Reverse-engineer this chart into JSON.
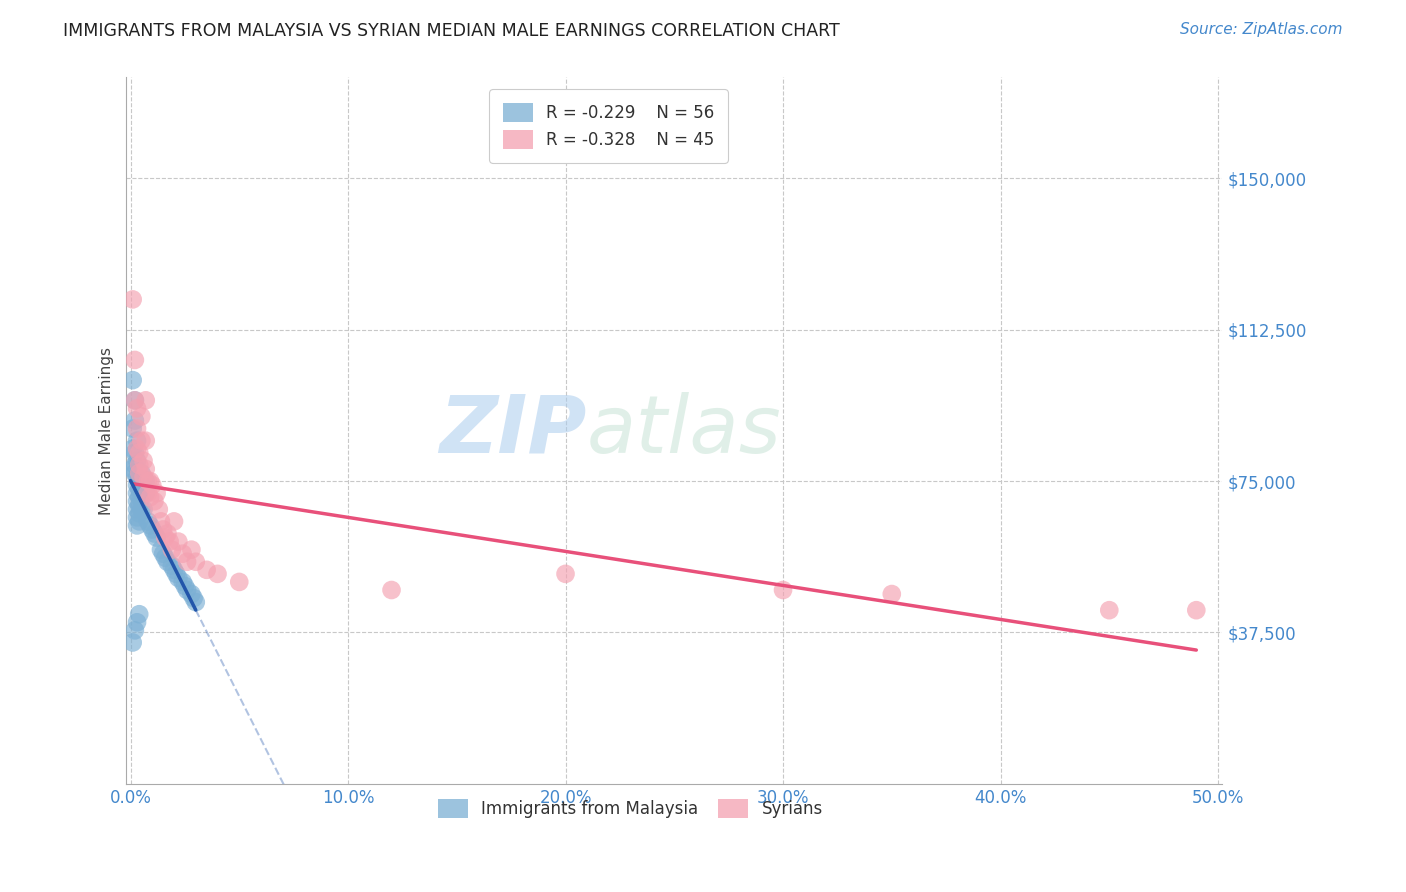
{
  "title": "IMMIGRANTS FROM MALAYSIA VS SYRIAN MEDIAN MALE EARNINGS CORRELATION CHART",
  "source": "Source: ZipAtlas.com",
  "ylabel": "Median Male Earnings",
  "xlim": [
    -0.002,
    0.502
  ],
  "ylim": [
    0,
    175000
  ],
  "yticks": [
    0,
    37500,
    75000,
    112500,
    150000
  ],
  "ytick_labels": [
    "",
    "$37,500",
    "$75,000",
    "$112,500",
    "$150,000"
  ],
  "xticks": [
    0.0,
    0.1,
    0.2,
    0.3,
    0.4,
    0.5
  ],
  "xtick_labels": [
    "0.0%",
    "10.0%",
    "20.0%",
    "30.0%",
    "40.0%",
    "50.0%"
  ],
  "grid_color": "#c8c8c8",
  "background_color": "#ffffff",
  "malaysia_color": "#7bafd4",
  "syrian_color": "#f4a0b0",
  "malaysia_line_color": "#2255aa",
  "syrian_line_color": "#e8507a",
  "malaysia_label": "Immigrants from Malaysia",
  "syrian_label": "Syrians",
  "R_malaysia": -0.229,
  "N_malaysia": 56,
  "R_syrian": -0.328,
  "N_syrian": 45,
  "watermark_zip": "ZIP",
  "watermark_atlas": "atlas",
  "malaysia_x": [
    0.001,
    0.001,
    0.001,
    0.001,
    0.002,
    0.002,
    0.002,
    0.002,
    0.002,
    0.003,
    0.003,
    0.003,
    0.003,
    0.003,
    0.003,
    0.003,
    0.003,
    0.003,
    0.004,
    0.004,
    0.004,
    0.004,
    0.004,
    0.004,
    0.005,
    0.005,
    0.005,
    0.005,
    0.006,
    0.006,
    0.006,
    0.007,
    0.007,
    0.008,
    0.009,
    0.01,
    0.011,
    0.012,
    0.014,
    0.015,
    0.016,
    0.017,
    0.019,
    0.02,
    0.021,
    0.022,
    0.024,
    0.025,
    0.026,
    0.028,
    0.029,
    0.03,
    0.001,
    0.002,
    0.003,
    0.004
  ],
  "malaysia_y": [
    100000,
    88000,
    83000,
    78000,
    95000,
    90000,
    82000,
    79000,
    77000,
    85000,
    80000,
    76000,
    74000,
    72000,
    70000,
    68000,
    66000,
    64000,
    75000,
    73000,
    71000,
    69000,
    67000,
    65000,
    77000,
    74000,
    71000,
    68000,
    75000,
    72000,
    68000,
    75000,
    72000,
    65000,
    64000,
    63000,
    62000,
    61000,
    58000,
    57000,
    56000,
    55000,
    54000,
    53000,
    52000,
    51000,
    50000,
    49000,
    48000,
    47000,
    46000,
    45000,
    35000,
    38000,
    40000,
    42000
  ],
  "syrian_x": [
    0.001,
    0.002,
    0.002,
    0.003,
    0.003,
    0.003,
    0.004,
    0.004,
    0.004,
    0.005,
    0.005,
    0.006,
    0.006,
    0.007,
    0.007,
    0.007,
    0.008,
    0.008,
    0.009,
    0.009,
    0.01,
    0.011,
    0.012,
    0.013,
    0.014,
    0.015,
    0.016,
    0.017,
    0.018,
    0.019,
    0.02,
    0.022,
    0.024,
    0.026,
    0.028,
    0.03,
    0.035,
    0.04,
    0.05,
    0.12,
    0.2,
    0.3,
    0.35,
    0.45,
    0.49
  ],
  "syrian_y": [
    120000,
    105000,
    95000,
    93000,
    88000,
    83000,
    82000,
    79000,
    77000,
    91000,
    85000,
    80000,
    76000,
    95000,
    85000,
    78000,
    75000,
    72000,
    75000,
    71000,
    74000,
    70000,
    72000,
    68000,
    65000,
    63000,
    61000,
    62000,
    60000,
    58000,
    65000,
    60000,
    57000,
    55000,
    58000,
    55000,
    53000,
    52000,
    50000,
    48000,
    52000,
    48000,
    47000,
    43000,
    43000
  ]
}
